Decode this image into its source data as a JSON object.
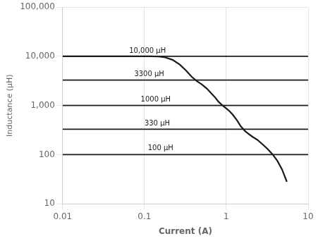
{
  "chart_data": {
    "type": "line",
    "xlabel": "Current (A)",
    "ylabel": "Inductance (μH)",
    "log": true,
    "grid": true,
    "xlim": [
      0.01,
      10
    ],
    "ylim": [
      10,
      100000
    ],
    "xticks": [
      0.01,
      0.1,
      1,
      10
    ],
    "yticks": [
      10,
      100,
      {
        "value": 1000,
        "label": "1,000"
      },
      {
        "value": 10000,
        "label": "10,000"
      },
      {
        "value": 100000,
        "label": "100,000"
      }
    ],
    "series": [
      {
        "color": "#1a1a1a",
        "x": [
          0.01,
          0.12,
          0.15,
          0.18,
          0.22,
          0.27,
          0.32,
          0.38,
          0.44,
          0.5,
          0.58,
          0.65,
          0.72,
          0.8,
          0.9,
          1.0,
          1.1,
          1.2,
          1.35,
          1.5,
          1.7,
          1.9,
          2.1,
          2.4,
          2.8,
          3.2,
          3.7,
          4.2,
          4.8,
          5.5
        ],
        "values": [
          10000,
          10000,
          9900,
          9500,
          8500,
          6800,
          5200,
          3800,
          3100,
          2700,
          2200,
          1800,
          1500,
          1200,
          1000,
          870,
          760,
          650,
          500,
          380,
          300,
          260,
          230,
          200,
          160,
          130,
          100,
          75,
          50,
          28
        ]
      }
    ],
    "hlines": [
      {
        "y": 10000,
        "color": "#1a1a1a"
      },
      {
        "y": 3300,
        "color": "#1a1a1a"
      },
      {
        "y": 1000,
        "color": "#1a1a1a"
      },
      {
        "y": 330,
        "color": "#1a1a1a"
      },
      {
        "y": 100,
        "color": "#1a1a1a"
      }
    ],
    "annotations": [
      {
        "text": "10,000 μH",
        "x": 0.065,
        "y": 13000,
        "color": "#1a1a1a"
      },
      {
        "text": "3300 μH",
        "x": 0.075,
        "y": 4300,
        "color": "#1a1a1a"
      },
      {
        "text": "1000 μH",
        "x": 0.09,
        "y": 1320,
        "color": "#1a1a1a"
      },
      {
        "text": "330 μH",
        "x": 0.1,
        "y": 430,
        "color": "#1a1a1a"
      },
      {
        "text": "100 μH",
        "x": 0.11,
        "y": 133,
        "color": "#1a1a1a"
      }
    ]
  }
}
